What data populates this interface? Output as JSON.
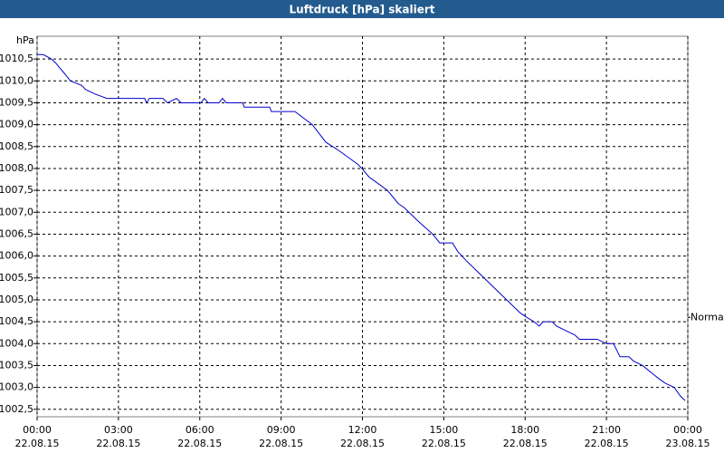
{
  "chart_data": {
    "type": "line",
    "title": "Luftdruck [hPa] skaliert",
    "y_unit": "hPa",
    "color": "#0000cc",
    "grid": true,
    "xlim": [
      0,
      24
    ],
    "ylim": [
      1002.33,
      1011.02
    ],
    "xticks": [
      {
        "value": 0,
        "label": "00:00",
        "date": "22.08.15"
      },
      {
        "value": 3,
        "label": "03:00",
        "date": "22.08.15"
      },
      {
        "value": 6,
        "label": "06:00",
        "date": "22.08.15"
      },
      {
        "value": 9,
        "label": "09:00",
        "date": "22.08.15"
      },
      {
        "value": 12,
        "label": "12:00",
        "date": "22.08.15"
      },
      {
        "value": 15,
        "label": "15:00",
        "date": "22.08.15"
      },
      {
        "value": 18,
        "label": "18:00",
        "date": "22.08.15"
      },
      {
        "value": 21,
        "label": "21:00",
        "date": "22.08.15"
      },
      {
        "value": 24,
        "label": "00:00",
        "date": "23.08.15"
      }
    ],
    "yticks": [
      {
        "value": 1002.5,
        "label": "1002,5"
      },
      {
        "value": 1003,
        "label": "1003,0"
      },
      {
        "value": 1003.5,
        "label": "1003,5"
      },
      {
        "value": 1004,
        "label": "1004,0"
      },
      {
        "value": 1004.5,
        "label": "1004,5"
      },
      {
        "value": 1005,
        "label": "1005,0"
      },
      {
        "value": 1005.5,
        "label": "1005,5"
      },
      {
        "value": 1006,
        "label": "1006,0"
      },
      {
        "value": 1006.5,
        "label": "1006,5"
      },
      {
        "value": 1007,
        "label": "1007,0"
      },
      {
        "value": 1007.5,
        "label": "1007,5"
      },
      {
        "value": 1008,
        "label": "1008,0"
      },
      {
        "value": 1008.5,
        "label": "1008,5"
      },
      {
        "value": 1009,
        "label": "1009,0"
      },
      {
        "value": 1009.5,
        "label": "1009,5"
      },
      {
        "value": 1010,
        "label": "1010,0"
      },
      {
        "value": 1010.5,
        "label": "1010,5"
      }
    ],
    "reference": {
      "label": "Normal",
      "value": 1004.6
    },
    "x": [
      0,
      0.23,
      0.53,
      0.7,
      0.83,
      0.97,
      1.1,
      1.23,
      1.64,
      1.8,
      2.14,
      2.57,
      3.97,
      4.04,
      4.14,
      4.64,
      4.81,
      5.14,
      5.31,
      6.04,
      6.17,
      6.31,
      6.71,
      6.84,
      6.98,
      7.58,
      7.64,
      8.58,
      8.64,
      9.51,
      10.15,
      10.65,
      11.15,
      11.82,
      11.98,
      12.25,
      12.48,
      12.92,
      13.32,
      13.55,
      14.05,
      14.59,
      14.85,
      15.32,
      15.52,
      15.82,
      16.32,
      16.82,
      17.32,
      17.82,
      18.06,
      18.33,
      18.52,
      18.66,
      19.0,
      19.16,
      19.49,
      19.83,
      20.0,
      20.66,
      21.0,
      21.26,
      21.5,
      21.83,
      22.0,
      22.33,
      22.73,
      22.93,
      23.16,
      23.5,
      23.73,
      23.9
    ],
    "values": [
      1010.6,
      1010.6,
      1010.5,
      1010.4,
      1010.3,
      1010.2,
      1010.1,
      1010.0,
      1009.9,
      1009.8,
      1009.7,
      1009.6,
      1009.6,
      1009.5,
      1009.6,
      1009.6,
      1009.5,
      1009.6,
      1009.5,
      1009.5,
      1009.6,
      1009.5,
      1009.5,
      1009.6,
      1009.5,
      1009.5,
      1009.4,
      1009.4,
      1009.3,
      1009.3,
      1009.0,
      1008.6,
      1008.4,
      1008.1,
      1008.0,
      1007.8,
      1007.7,
      1007.5,
      1007.2,
      1007.1,
      1006.8,
      1006.5,
      1006.3,
      1006.3,
      1006.1,
      1005.9,
      1005.6,
      1005.3,
      1005.0,
      1004.7,
      1004.6,
      1004.5,
      1004.4,
      1004.5,
      1004.5,
      1004.4,
      1004.3,
      1004.2,
      1004.1,
      1004.1,
      1004.0,
      1004.0,
      1003.7,
      1003.7,
      1003.6,
      1003.5,
      1003.3,
      1003.2,
      1003.1,
      1003.0,
      1002.8,
      1002.7
    ]
  }
}
